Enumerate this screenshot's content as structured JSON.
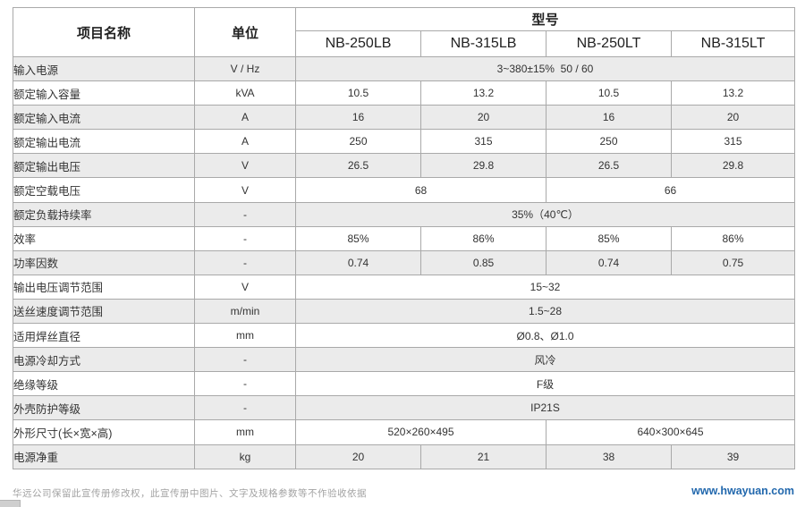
{
  "colors": {
    "row_shade": "#ebebeb",
    "table_border": "#a9a9a9",
    "link_blue": "#2268ad",
    "disclaimer_gray": "#a3a3a3"
  },
  "header": {
    "item_col": "项目名称",
    "unit_col": "单位",
    "model_col": "型号",
    "models": [
      "NB-250LB",
      "NB-315LB",
      "NB-250LT",
      "NB-315LT"
    ]
  },
  "rows": [
    {
      "label": "输入电源",
      "unit": "V / Hz",
      "values": [
        {
          "text": "3~380±15%  50 / 60",
          "span": 4
        }
      ]
    },
    {
      "label": "额定输入容量",
      "unit": "kVA",
      "values": [
        {
          "text": "10.5",
          "span": 1
        },
        {
          "text": "13.2",
          "span": 1
        },
        {
          "text": "10.5",
          "span": 1
        },
        {
          "text": "13.2",
          "span": 1
        }
      ]
    },
    {
      "label": "额定输入电流",
      "unit": "A",
      "values": [
        {
          "text": "16",
          "span": 1
        },
        {
          "text": "20",
          "span": 1
        },
        {
          "text": "16",
          "span": 1
        },
        {
          "text": "20",
          "span": 1
        }
      ]
    },
    {
      "label": "额定输出电流",
      "unit": "A",
      "values": [
        {
          "text": "250",
          "span": 1
        },
        {
          "text": "315",
          "span": 1
        },
        {
          "text": "250",
          "span": 1
        },
        {
          "text": "315",
          "span": 1
        }
      ]
    },
    {
      "label": "额定输出电压",
      "unit": "V",
      "values": [
        {
          "text": "26.5",
          "span": 1
        },
        {
          "text": "29.8",
          "span": 1
        },
        {
          "text": "26.5",
          "span": 1
        },
        {
          "text": "29.8",
          "span": 1
        }
      ]
    },
    {
      "label": "额定空载电压",
      "unit": "V",
      "values": [
        {
          "text": "68",
          "span": 2
        },
        {
          "text": "66",
          "span": 2
        }
      ]
    },
    {
      "label": "额定负载持续率",
      "unit": "-",
      "values": [
        {
          "text": "35%（40℃）",
          "span": 4
        }
      ]
    },
    {
      "label": "效率",
      "unit": "-",
      "values": [
        {
          "text": "85%",
          "span": 1
        },
        {
          "text": "86%",
          "span": 1
        },
        {
          "text": "85%",
          "span": 1
        },
        {
          "text": "86%",
          "span": 1
        }
      ]
    },
    {
      "label": "功率因数",
      "unit": "-",
      "values": [
        {
          "text": "0.74",
          "span": 1
        },
        {
          "text": "0.85",
          "span": 1
        },
        {
          "text": "0.74",
          "span": 1
        },
        {
          "text": "0.75",
          "span": 1
        }
      ]
    },
    {
      "label": "输出电压调节范围",
      "unit": "V",
      "values": [
        {
          "text": "15~32",
          "span": 4
        }
      ]
    },
    {
      "label": "送丝速度调节范围",
      "unit": "m/min",
      "values": [
        {
          "text": "1.5~28",
          "span": 4
        }
      ]
    },
    {
      "label": "适用焊丝直径",
      "unit": "mm",
      "values": [
        {
          "text": "Ø0.8、Ø1.0",
          "span": 4
        }
      ]
    },
    {
      "label": "电源冷却方式",
      "unit": "-",
      "values": [
        {
          "text": "风冷",
          "span": 4
        }
      ]
    },
    {
      "label": "绝缘等级",
      "unit": "-",
      "values": [
        {
          "text": "F级",
          "span": 4
        }
      ]
    },
    {
      "label": "外壳防护等级",
      "unit": "-",
      "values": [
        {
          "text": "IP21S",
          "span": 4
        }
      ]
    },
    {
      "label": "外形尺寸(长×宽×高)",
      "unit": "mm",
      "values": [
        {
          "text": "520×260×495",
          "span": 2
        },
        {
          "text": "640×300×645",
          "span": 2
        }
      ]
    },
    {
      "label": "电源净重",
      "unit": "kg",
      "values": [
        {
          "text": "20",
          "span": 1
        },
        {
          "text": "21",
          "span": 1
        },
        {
          "text": "38",
          "span": 1
        },
        {
          "text": "39",
          "span": 1
        }
      ]
    }
  ],
  "footer": {
    "disclaimer": "华远公司保留此宣传册修改权，此宣传册中图片、文字及规格参数等不作验收依据",
    "website": "www.hwayuan.com"
  }
}
